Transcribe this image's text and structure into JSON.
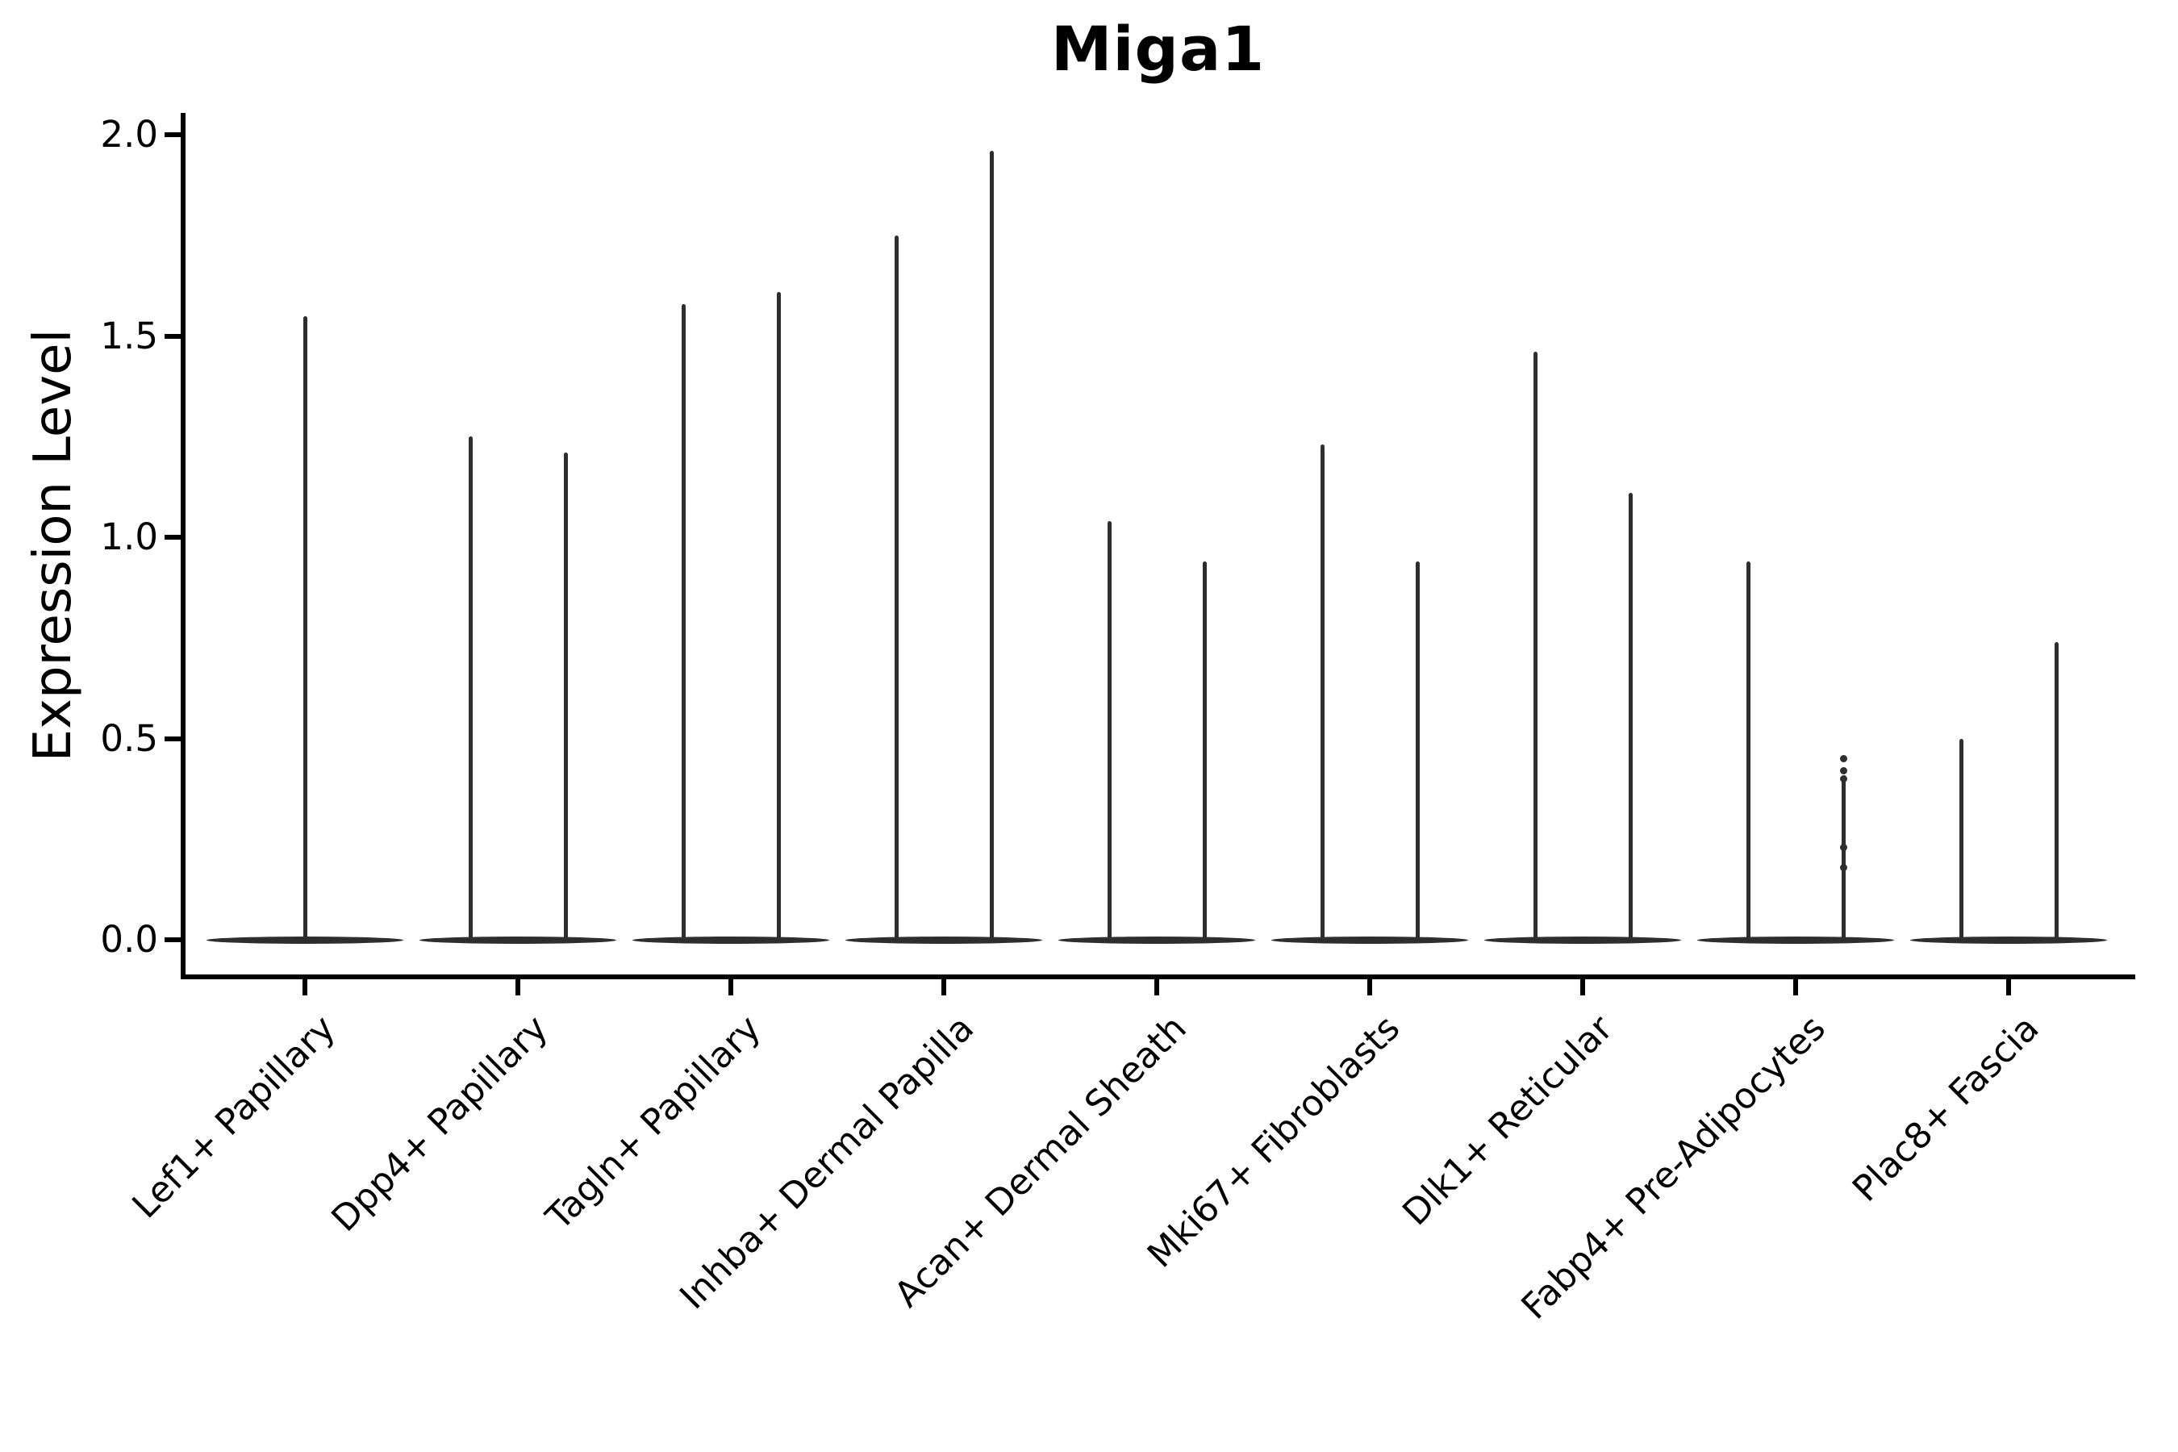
{
  "figure": {
    "title": "Miga1"
  },
  "chart_data": {
    "type": "violin",
    "title": "Miga1",
    "ylabel": "Expression Level",
    "xlabel": "",
    "ylim": [
      0,
      2.05
    ],
    "yticks": [
      0.0,
      0.5,
      1.0,
      1.5,
      2.0
    ],
    "ytick_labels": [
      "0.0",
      "0.5",
      "1.0",
      "1.5",
      "2.0"
    ],
    "grid": false,
    "legend_position": "none",
    "categories": [
      "Lef1+ Papillary",
      "Dpp4+ Papillary",
      "Tagln+ Papillary",
      "Inhba+ Dermal Papilla",
      "Acan+ Dermal Sheath",
      "Mki67+ Fibroblasts",
      "Dlk1+ Reticular",
      "Fabp4+ Pre-Adipocytes",
      "Plac8+ Fascia"
    ],
    "groups": [
      {
        "label": "Lef1+ Papillary",
        "violins": [
          {
            "max": 1.55
          }
        ]
      },
      {
        "label": "Dpp4+ Papillary",
        "violins": [
          {
            "max": 1.25
          },
          {
            "max": 1.21
          }
        ]
      },
      {
        "label": "Tagln+ Papillary",
        "violins": [
          {
            "max": 1.58
          },
          {
            "max": 1.61
          }
        ]
      },
      {
        "label": "Inhba+ Dermal Papilla",
        "violins": [
          {
            "max": 1.75
          },
          {
            "max": 1.96
          }
        ]
      },
      {
        "label": "Acan+ Dermal Sheath",
        "violins": [
          {
            "max": 1.04
          },
          {
            "max": 0.94
          }
        ]
      },
      {
        "label": "Mki67+ Fibroblasts",
        "violins": [
          {
            "max": 1.23
          },
          {
            "max": 0.94
          }
        ]
      },
      {
        "label": "Dlk1+ Reticular",
        "violins": [
          {
            "max": 1.46
          },
          {
            "max": 1.11
          }
        ]
      },
      {
        "label": "Fabp4+ Pre-Adipocytes",
        "violins": [
          {
            "max": 0.94
          },
          {
            "max": 0.4,
            "dots": [
              0.45,
              0.42,
              0.4,
              0.23,
              0.18
            ]
          }
        ]
      },
      {
        "label": "Plac8+ Fascia",
        "violins": [
          {
            "max": 0.5
          },
          {
            "max": 0.74
          }
        ]
      }
    ],
    "style": {
      "ink": "#2e2e2e",
      "axis_color": "#000000",
      "background": "#ffffff"
    }
  }
}
